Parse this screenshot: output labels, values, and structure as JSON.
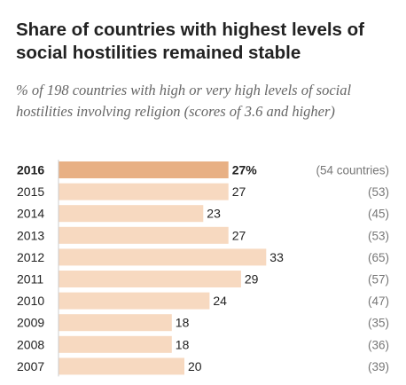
{
  "title": "Share of countries with highest levels of social hostilities remained stable",
  "subtitle": "% of 198 countries with high or very high levels of social hostilities involving religion (scores of 3.6 and higher)",
  "colors": {
    "bar": "#f7d9c0",
    "bar_highlight": "#e8b084",
    "axis_line": "#cccccc"
  },
  "chart_data": {
    "type": "bar",
    "orientation": "horizontal",
    "categories": [
      "2016",
      "2015",
      "2014",
      "2013",
      "2012",
      "2011",
      "2010",
      "2009",
      "2008",
      "2007"
    ],
    "values": [
      27,
      27,
      23,
      27,
      33,
      29,
      24,
      18,
      18,
      20
    ],
    "value_labels": [
      "27%",
      "27",
      "23",
      "27",
      "33",
      "29",
      "24",
      "18",
      "18",
      "20"
    ],
    "country_counts": [
      "(54 countries)",
      "(53)",
      "(45)",
      "(53)",
      "(65)",
      "(57)",
      "(47)",
      "(35)",
      "(36)",
      "(39)"
    ],
    "highlight_index": 0,
    "xlim": [
      0,
      100
    ],
    "grid": false,
    "legend": "none"
  }
}
